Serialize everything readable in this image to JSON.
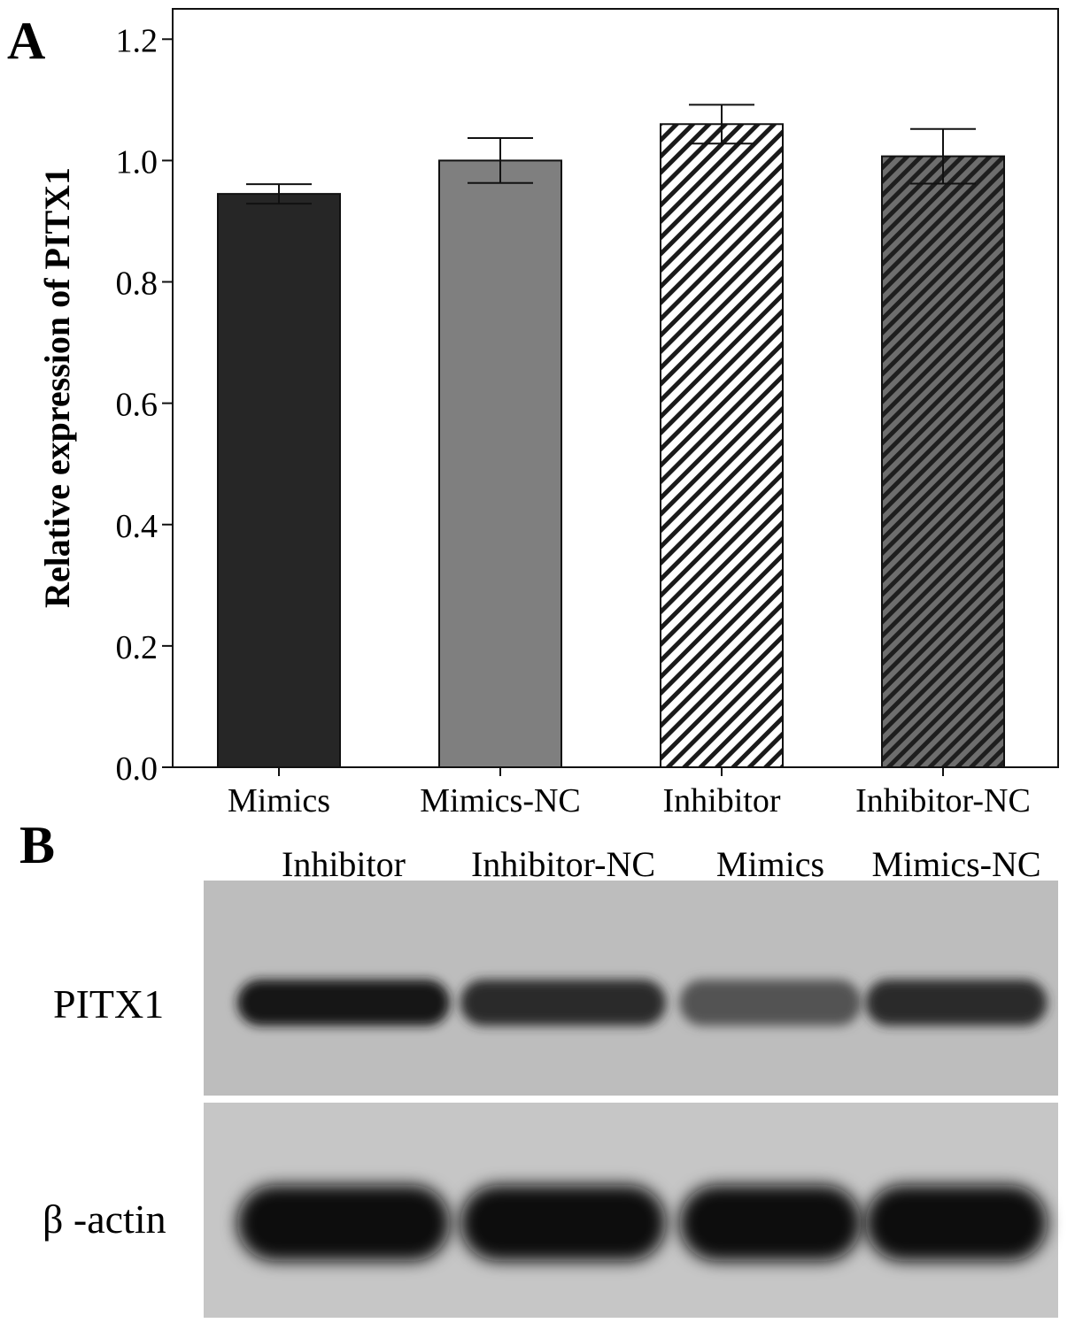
{
  "panel_a_label": "A",
  "panel_b_label": "B",
  "chart_data": {
    "type": "bar",
    "title": "",
    "xlabel": "",
    "ylabel": "Relative expression of PITX1",
    "categories": [
      "Mimics",
      "Mimics-NC",
      "Inhibitor",
      "Inhibitor-NC"
    ],
    "values": [
      0.945,
      1.0,
      1.06,
      1.007
    ],
    "errors": [
      0.016,
      0.037,
      0.032,
      0.045
    ],
    "fills": [
      "solid-dark",
      "solid-gray",
      "hatch-white",
      "hatch-dark"
    ],
    "colors": {
      "dark": "#262626",
      "gray": "#7f7f7f",
      "white": "#ffffff",
      "outline": "#111111"
    },
    "ylim": [
      0,
      1.25
    ],
    "yticks": [
      "0.0",
      "0.2",
      "0.4",
      "0.6",
      "0.8",
      "1.0",
      "1.2"
    ],
    "grid": false,
    "legend": "none"
  },
  "blot": {
    "lanes": [
      "Inhibitor",
      "Inhibitor-NC",
      "Mimics",
      "Mimics-NC"
    ],
    "rows": [
      {
        "label": "PITX1",
        "band_intensity": [
          0.95,
          0.8,
          0.5,
          0.8
        ]
      },
      {
        "label": "β -actin",
        "band_intensity": [
          1.0,
          1.0,
          1.0,
          1.0
        ]
      }
    ]
  }
}
